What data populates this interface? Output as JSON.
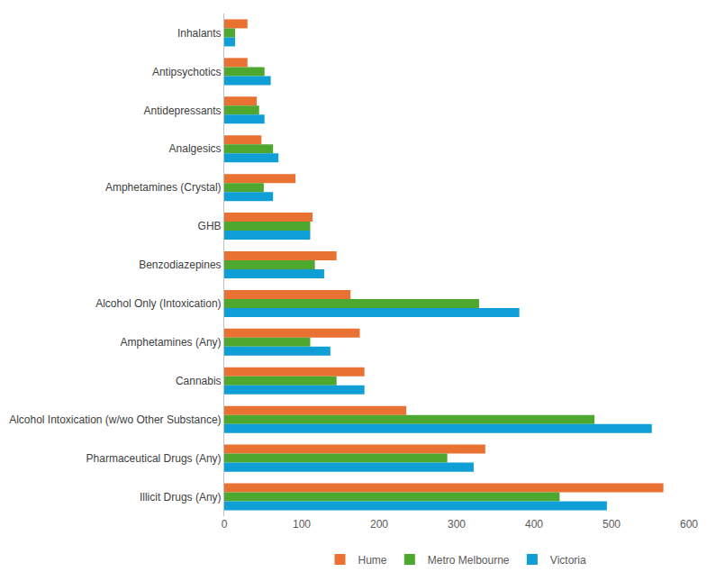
{
  "chart_data": {
    "type": "bar",
    "orientation": "horizontal",
    "categories": [
      "Inhalants",
      "Antipsychotics",
      "Antidepressants",
      "Analgesics",
      "Amphetamines (Crystal)",
      "GHB",
      "Benzodiazepines",
      "Alcohol Only (Intoxication)",
      "Amphetamines (Any)",
      "Cannabis",
      "Alcohol Intoxication (w/wo Other Substance)",
      "Pharmaceutical Drugs (Any)",
      "Illicit Drugs (Any)"
    ],
    "series": [
      {
        "name": "Hume",
        "color": "#E97132",
        "values": [
          30,
          30,
          42,
          48,
          92,
          114,
          145,
          163,
          175,
          181,
          235,
          337,
          567
        ]
      },
      {
        "name": "Metro Melbourne",
        "color": "#4EA72E",
        "values": [
          14,
          52,
          45,
          63,
          51,
          111,
          117,
          329,
          111,
          145,
          478,
          288,
          433
        ]
      },
      {
        "name": "Victoria",
        "color": "#0F9ED5",
        "values": [
          14,
          60,
          52,
          70,
          63,
          111,
          129,
          381,
          137,
          181,
          552,
          322,
          494
        ]
      }
    ],
    "xlim": [
      0,
      600
    ],
    "xticks": [
      0,
      100,
      200,
      300,
      400,
      500,
      600
    ],
    "grid": false,
    "legend": "bottom"
  }
}
